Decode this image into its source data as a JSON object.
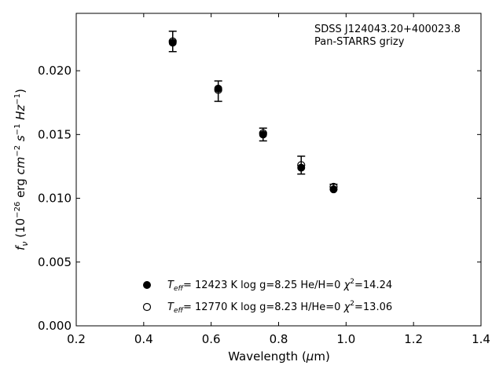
{
  "chart_data": {
    "type": "scatter",
    "xlabel_main": "Wavelength (",
    "xlabel_mu": "μ",
    "xlabel_tail": "m)",
    "ylabel": {
      "f": "f",
      "nu": "ν",
      "open": " (10",
      "exp1": "−26",
      "mid": " erg ",
      "cm": "cm",
      "exp2": "−2",
      "s": " s",
      "exp3": "−1",
      "hz": " Hz",
      "exp4": "−1",
      "close": ")"
    },
    "xlim": [
      0.2,
      1.4
    ],
    "ylim": [
      0.0,
      0.0245
    ],
    "xticks": [
      0.2,
      0.4,
      0.6,
      0.8,
      1.0,
      1.2,
      1.4
    ],
    "xtick_labels": [
      "0.2",
      "0.4",
      "0.6",
      "0.8",
      "1.0",
      "1.2",
      "1.4"
    ],
    "yticks": [
      0.0,
      0.005,
      0.01,
      0.015,
      0.02
    ],
    "ytick_labels": [
      "0.000",
      "0.005",
      "0.010",
      "0.015",
      "0.020"
    ],
    "annotation": [
      "SDSS J124043.20+400023.8",
      "Pan-STARRS grizy"
    ],
    "observed": {
      "x": [
        0.486,
        0.621,
        0.754,
        0.867,
        0.963
      ],
      "y": [
        0.0223,
        0.0184,
        0.015,
        0.0126,
        0.0109
      ],
      "yerr": [
        0.0008,
        0.0008,
        0.0005,
        0.0007,
        0.0002
      ]
    },
    "series": [
      {
        "name": "T_eff= 12423 K  log g=8.25  He/H=0  χ²=14.24",
        "marker": "filled",
        "legend": {
          "t": "T",
          "eff": "eff",
          "main": "= 12423 K  log g=8.25  He/H=0  ",
          "chi": "χ",
          "sq": "2",
          "val": "=14.24"
        },
        "x": [
          0.486,
          0.621,
          0.754,
          0.867,
          0.963
        ],
        "y": [
          0.0222,
          0.0186,
          0.015,
          0.0124,
          0.0107
        ]
      },
      {
        "name": "T_eff= 12770 K  log g=8.23  H/He=0  χ²=13.06",
        "marker": "open",
        "legend": {
          "t": "T",
          "eff": "eff",
          "main": "= 12770 K  log g=8.23  H/He=0  ",
          "chi": "χ",
          "sq": "2",
          "val": "=13.06"
        },
        "x": [
          0.486,
          0.621,
          0.754,
          0.867,
          0.963
        ],
        "y": [
          0.0223,
          0.0185,
          0.0151,
          0.0126,
          0.0109
        ]
      }
    ],
    "colors": {
      "marker": "#000000",
      "axes": "#000000",
      "background": "#ffffff"
    },
    "grid": false,
    "legend_position": "lower-center"
  }
}
